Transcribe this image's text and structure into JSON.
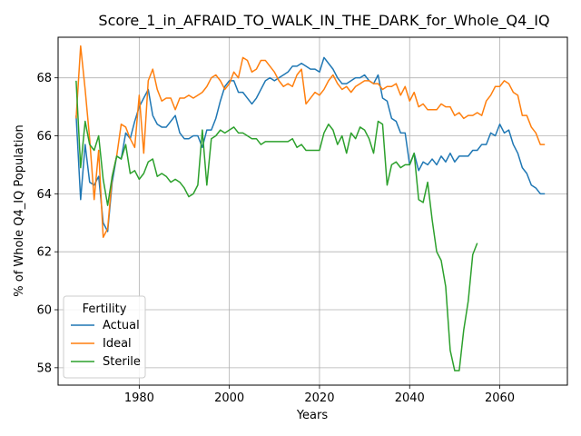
{
  "chart_data": {
    "type": "line",
    "title": "Score_1_in_AFRAID_TO_WALK_IN_THE_DARK_for_Whole_Q4_IQ",
    "xlabel": "Years",
    "ylabel": "% of Whole Q4_IQ Population",
    "xlim": [
      1962,
      2075
    ],
    "ylim": [
      57.4,
      69.4
    ],
    "xticks": [
      1980,
      2000,
      2020,
      2040,
      2060
    ],
    "yticks": [
      58,
      60,
      62,
      64,
      66,
      68
    ],
    "grid": true,
    "legend": {
      "title": "Fertility",
      "position": "lower-left"
    },
    "series": [
      {
        "name": "Actual",
        "color": "#1f77b4",
        "x": [
          1966,
          1967,
          1968,
          1969,
          1970,
          1971,
          1972,
          1973,
          1974,
          1975,
          1976,
          1977,
          1978,
          1979,
          1980,
          1981,
          1982,
          1983,
          1984,
          1985,
          1986,
          1987,
          1988,
          1989,
          1990,
          1991,
          1992,
          1993,
          1994,
          1995,
          1996,
          1997,
          1998,
          1999,
          2000,
          2001,
          2002,
          2003,
          2004,
          2005,
          2006,
          2007,
          2008,
          2009,
          2010,
          2011,
          2012,
          2013,
          2014,
          2015,
          2016,
          2017,
          2018,
          2019,
          2020,
          2021,
          2022,
          2023,
          2024,
          2025,
          2026,
          2027,
          2028,
          2029,
          2030,
          2031,
          2032,
          2033,
          2034,
          2035,
          2036,
          2037,
          2038,
          2039,
          2040,
          2041,
          2042,
          2043,
          2044,
          2045,
          2046,
          2047,
          2048,
          2049,
          2050,
          2051,
          2052,
          2053,
          2054,
          2055,
          2056,
          2057,
          2058,
          2059,
          2060,
          2061,
          2062,
          2063,
          2064,
          2065,
          2066,
          2067,
          2068,
          2069,
          2070
        ],
        "values": [
          66.7,
          63.8,
          65.7,
          64.4,
          64.3,
          64.6,
          63.0,
          62.7,
          64.4,
          65.3,
          65.2,
          66.1,
          65.9,
          66.5,
          67.0,
          67.3,
          67.6,
          66.7,
          66.4,
          66.3,
          66.3,
          66.5,
          66.7,
          66.1,
          65.9,
          65.9,
          66.0,
          66.0,
          65.6,
          66.2,
          66.2,
          66.6,
          67.2,
          67.7,
          67.9,
          67.9,
          67.5,
          67.5,
          67.3,
          67.1,
          67.3,
          67.6,
          67.9,
          68.0,
          67.9,
          68.0,
          68.1,
          68.2,
          68.4,
          68.4,
          68.5,
          68.4,
          68.3,
          68.3,
          68.2,
          68.7,
          68.5,
          68.3,
          68.0,
          67.8,
          67.8,
          67.9,
          68.0,
          68.0,
          68.1,
          67.9,
          67.8,
          68.1,
          67.3,
          67.2,
          66.6,
          66.5,
          66.1,
          66.1,
          65.0,
          65.4,
          64.8,
          65.1,
          65.0,
          65.2,
          65.0,
          65.3,
          65.1,
          65.4,
          65.1,
          65.3,
          65.3,
          65.3,
          65.5,
          65.5,
          65.7,
          65.7,
          66.1,
          66.0,
          66.4,
          66.1,
          66.2,
          65.7,
          65.4,
          64.9,
          64.7,
          64.3,
          64.2,
          64.0,
          64.0
        ]
      },
      {
        "name": "Ideal",
        "color": "#ff7f0e",
        "x": [
          1966,
          1967,
          1968,
          1969,
          1970,
          1971,
          1972,
          1973,
          1974,
          1975,
          1976,
          1977,
          1978,
          1979,
          1980,
          1981,
          1982,
          1983,
          1984,
          1985,
          1986,
          1987,
          1988,
          1989,
          1990,
          1991,
          1992,
          1993,
          1994,
          1995,
          1996,
          1997,
          1998,
          1999,
          2000,
          2001,
          2002,
          2003,
          2004,
          2005,
          2006,
          2007,
          2008,
          2009,
          2010,
          2011,
          2012,
          2013,
          2014,
          2015,
          2016,
          2017,
          2018,
          2019,
          2020,
          2021,
          2022,
          2023,
          2024,
          2025,
          2026,
          2027,
          2028,
          2029,
          2030,
          2031,
          2032,
          2033,
          2034,
          2035,
          2036,
          2037,
          2038,
          2039,
          2040,
          2041,
          2042,
          2043,
          2044,
          2045,
          2046,
          2047,
          2048,
          2049,
          2050,
          2051,
          2052,
          2053,
          2054,
          2055,
          2056,
          2057,
          2058,
          2059,
          2060,
          2061,
          2062,
          2063,
          2064,
          2065,
          2066,
          2067,
          2068,
          2069,
          2070
        ],
        "values": [
          66.6,
          69.1,
          67.6,
          65.9,
          63.8,
          65.5,
          62.5,
          62.8,
          64.6,
          65.3,
          66.4,
          66.3,
          65.9,
          65.6,
          67.4,
          65.4,
          67.9,
          68.3,
          67.6,
          67.2,
          67.3,
          67.3,
          66.9,
          67.3,
          67.3,
          67.4,
          67.3,
          67.4,
          67.5,
          67.7,
          68.0,
          68.1,
          67.9,
          67.6,
          67.8,
          68.2,
          68.0,
          68.7,
          68.6,
          68.2,
          68.3,
          68.6,
          68.6,
          68.4,
          68.2,
          67.9,
          67.7,
          67.8,
          67.7,
          68.1,
          68.3,
          67.1,
          67.3,
          67.5,
          67.4,
          67.6,
          67.9,
          68.1,
          67.8,
          67.6,
          67.7,
          67.5,
          67.7,
          67.8,
          67.9,
          67.9,
          67.8,
          67.8,
          67.6,
          67.7,
          67.7,
          67.8,
          67.4,
          67.7,
          67.2,
          67.5,
          67.0,
          67.1,
          66.9,
          66.9,
          66.9,
          67.1,
          67.0,
          67.0,
          66.7,
          66.8,
          66.6,
          66.7,
          66.7,
          66.8,
          66.7,
          67.2,
          67.4,
          67.7,
          67.7,
          67.9,
          67.8,
          67.5,
          67.4,
          66.7,
          66.7,
          66.3,
          66.1,
          65.7,
          65.7
        ]
      },
      {
        "name": "Sterile",
        "color": "#2ca02c",
        "x": [
          1966,
          1967,
          1968,
          1969,
          1970,
          1971,
          1972,
          1973,
          1974,
          1975,
          1976,
          1977,
          1978,
          1979,
          1980,
          1981,
          1982,
          1983,
          1984,
          1985,
          1986,
          1987,
          1988,
          1989,
          1990,
          1991,
          1992,
          1993,
          1994,
          1995,
          1996,
          1997,
          1998,
          1999,
          2000,
          2001,
          2002,
          2003,
          2004,
          2005,
          2006,
          2007,
          2008,
          2009,
          2010,
          2011,
          2012,
          2013,
          2014,
          2015,
          2016,
          2017,
          2018,
          2019,
          2020,
          2021,
          2022,
          2023,
          2024,
          2025,
          2026,
          2027,
          2028,
          2029,
          2030,
          2031,
          2032,
          2033,
          2034,
          2035,
          2036,
          2037,
          2038,
          2039,
          2040,
          2041,
          2042,
          2043,
          2044,
          2045,
          2046,
          2047,
          2048,
          2049,
          2050,
          2051,
          2052,
          2053,
          2054,
          2055
        ],
        "values": [
          67.9,
          64.9,
          66.5,
          65.7,
          65.5,
          66.0,
          64.5,
          63.6,
          64.6,
          65.3,
          65.2,
          65.7,
          64.7,
          64.8,
          64.5,
          64.7,
          65.1,
          65.2,
          64.6,
          64.7,
          64.6,
          64.4,
          64.5,
          64.4,
          64.2,
          63.9,
          64.0,
          64.3,
          66.2,
          64.3,
          65.9,
          66.0,
          66.2,
          66.1,
          66.2,
          66.3,
          66.1,
          66.1,
          66.0,
          65.9,
          65.9,
          65.7,
          65.8,
          65.8,
          65.8,
          65.8,
          65.8,
          65.8,
          65.9,
          65.6,
          65.7,
          65.5,
          65.5,
          65.5,
          65.5,
          66.1,
          66.4,
          66.2,
          65.7,
          66.0,
          65.4,
          66.1,
          65.9,
          66.3,
          66.2,
          65.9,
          65.4,
          66.5,
          66.4,
          64.3,
          65.0,
          65.1,
          64.9,
          65.0,
          65.0,
          65.4,
          63.8,
          63.7,
          64.4,
          63.1,
          62.0,
          61.7,
          60.8,
          58.6,
          57.9,
          57.9,
          59.3,
          60.3,
          61.9,
          62.3
        ]
      }
    ]
  }
}
